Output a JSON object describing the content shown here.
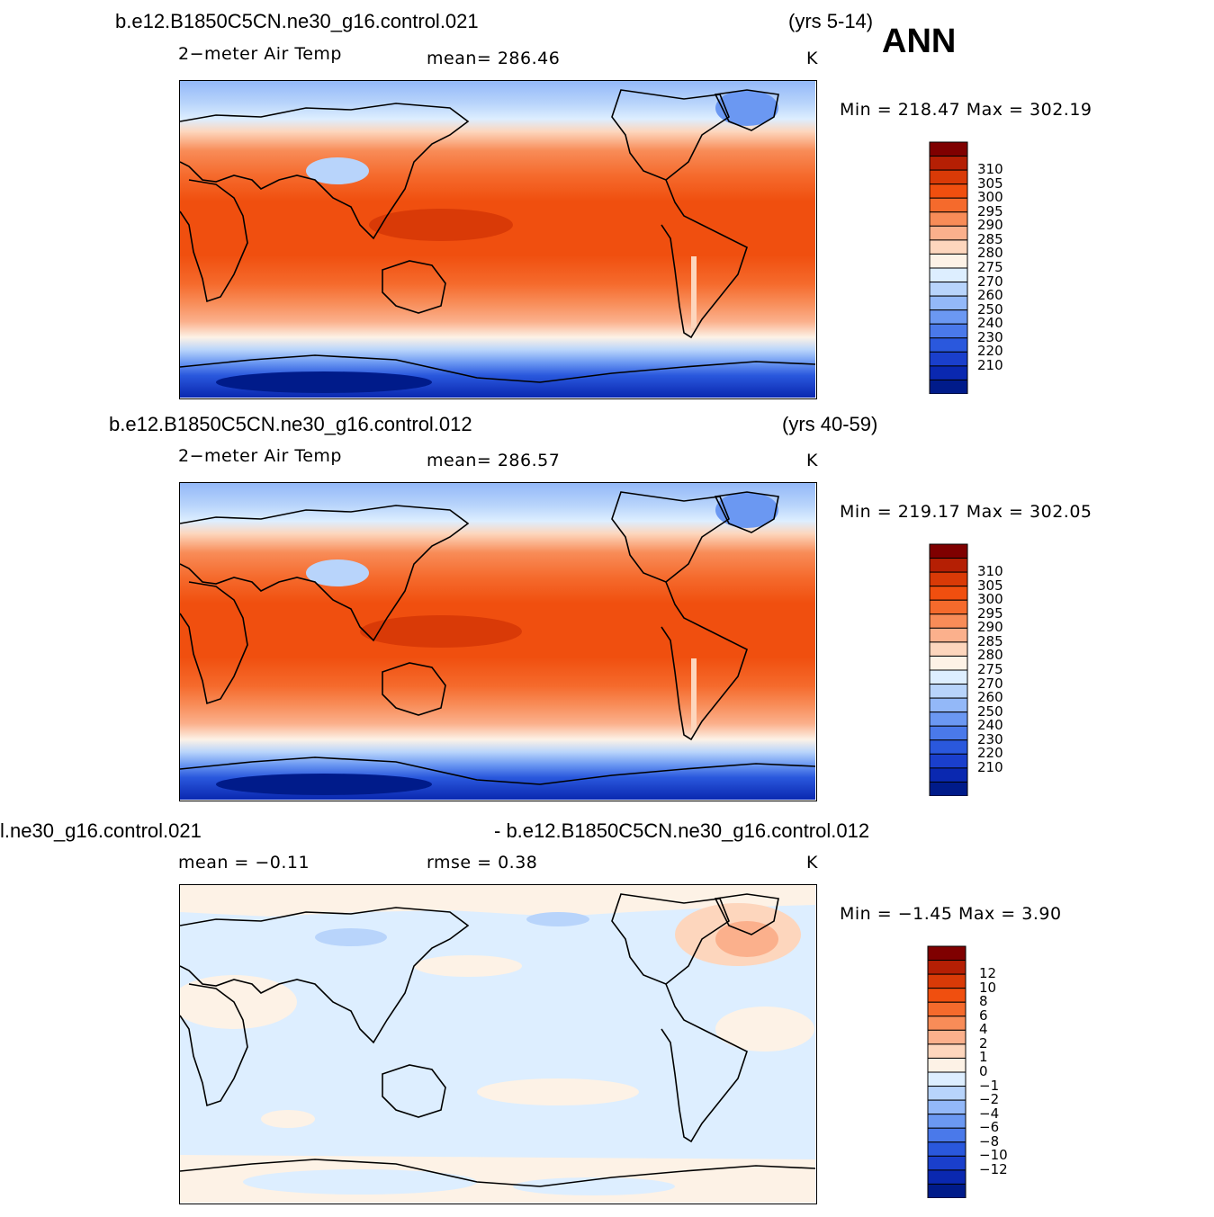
{
  "season": "ANN",
  "panels": [
    {
      "case": "b.e12.B1850C5CN.ne30_g16.control.021",
      "years": "(yrs 5-14)",
      "variable": "2−meter Air Temp",
      "stat_text": "mean=  286.46",
      "units": "K",
      "minmax": "Min  =  218.47  Max  =  302.19"
    },
    {
      "case": "b.e12.B1850C5CN.ne30_g16.control.012",
      "years": "(yrs 40-59)",
      "variable": "2−meter Air Temp",
      "stat_text": "mean=  286.57",
      "units": "K",
      "minmax": "Min  =  219.17  Max  =  302.05"
    },
    {
      "case_left": "l.ne30_g16.control.021",
      "case_right": "- b.e12.B1850C5CN.ne30_g16.control.012",
      "mean_text": "mean  =   −0.11",
      "rmse_text": "rmse  =     0.38",
      "units": "K",
      "minmax": "Min  =    −1.45  Max  =      3.90"
    }
  ],
  "colorbars": {
    "absolute": {
      "labels": [
        "310",
        "305",
        "300",
        "295",
        "290",
        "285",
        "280",
        "275",
        "270",
        "260",
        "250",
        "240",
        "230",
        "220",
        "210"
      ],
      "colors": [
        "#7f0000",
        "#b51f04",
        "#d93a07",
        "#f04f0f",
        "#f56a2c",
        "#f88c58",
        "#fbb08c",
        "#fdd6bd",
        "#fdf2e6",
        "#ddeeff",
        "#b8d4fb",
        "#93b8f8",
        "#6b98f2",
        "#4a79ea",
        "#2a58dd",
        "#1a3fcc",
        "#0a28b0",
        "#001b8a"
      ]
    },
    "difference": {
      "labels": [
        "12",
        "10",
        "8",
        "6",
        "4",
        "2",
        "1",
        "0",
        "−1",
        "−2",
        "−4",
        "−6",
        "−8",
        "−10",
        "−12"
      ],
      "colors": [
        "#7f0000",
        "#b51f04",
        "#d93a07",
        "#f04f0f",
        "#f56a2c",
        "#f88c58",
        "#fbb08c",
        "#fdd6bd",
        "#fdf2e6",
        "#ddeeff",
        "#b8d4fb",
        "#93b8f8",
        "#6b98f2",
        "#4a79ea",
        "#2a58dd",
        "#1a3fcc",
        "#0a28b0",
        "#001b8a"
      ]
    }
  }
}
